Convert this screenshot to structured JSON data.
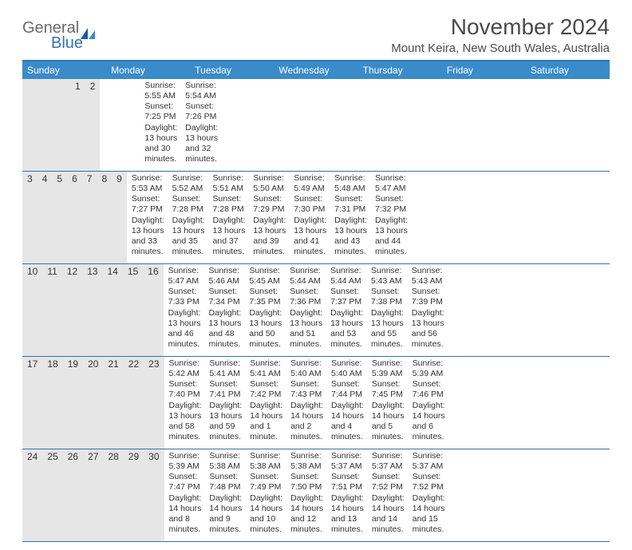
{
  "logo": {
    "general": "General",
    "blue": "Blue"
  },
  "title": "November 2024",
  "location": "Mount Keira, New South Wales, Australia",
  "colors": {
    "header_bg": "#3a8bc9",
    "header_border": "#2e75b6",
    "daynum_bg": "#e6e6e6",
    "week_divider": "#3a6fa8",
    "logo_gray": "#6a6a6a",
    "logo_blue": "#2e75b6"
  },
  "weekdays": [
    "Sunday",
    "Monday",
    "Tuesday",
    "Wednesday",
    "Thursday",
    "Friday",
    "Saturday"
  ],
  "weeks": [
    [
      {
        "num": "",
        "sunrise": "",
        "sunset": "",
        "daylight": ""
      },
      {
        "num": "",
        "sunrise": "",
        "sunset": "",
        "daylight": ""
      },
      {
        "num": "",
        "sunrise": "",
        "sunset": "",
        "daylight": ""
      },
      {
        "num": "",
        "sunrise": "",
        "sunset": "",
        "daylight": ""
      },
      {
        "num": "",
        "sunrise": "",
        "sunset": "",
        "daylight": ""
      },
      {
        "num": "1",
        "sunrise": "Sunrise: 5:55 AM",
        "sunset": "Sunset: 7:25 PM",
        "daylight": "Daylight: 13 hours and 30 minutes."
      },
      {
        "num": "2",
        "sunrise": "Sunrise: 5:54 AM",
        "sunset": "Sunset: 7:26 PM",
        "daylight": "Daylight: 13 hours and 32 minutes."
      }
    ],
    [
      {
        "num": "3",
        "sunrise": "Sunrise: 5:53 AM",
        "sunset": "Sunset: 7:27 PM",
        "daylight": "Daylight: 13 hours and 33 minutes."
      },
      {
        "num": "4",
        "sunrise": "Sunrise: 5:52 AM",
        "sunset": "Sunset: 7:28 PM",
        "daylight": "Daylight: 13 hours and 35 minutes."
      },
      {
        "num": "5",
        "sunrise": "Sunrise: 5:51 AM",
        "sunset": "Sunset: 7:28 PM",
        "daylight": "Daylight: 13 hours and 37 minutes."
      },
      {
        "num": "6",
        "sunrise": "Sunrise: 5:50 AM",
        "sunset": "Sunset: 7:29 PM",
        "daylight": "Daylight: 13 hours and 39 minutes."
      },
      {
        "num": "7",
        "sunrise": "Sunrise: 5:49 AM",
        "sunset": "Sunset: 7:30 PM",
        "daylight": "Daylight: 13 hours and 41 minutes."
      },
      {
        "num": "8",
        "sunrise": "Sunrise: 5:48 AM",
        "sunset": "Sunset: 7:31 PM",
        "daylight": "Daylight: 13 hours and 43 minutes."
      },
      {
        "num": "9",
        "sunrise": "Sunrise: 5:47 AM",
        "sunset": "Sunset: 7:32 PM",
        "daylight": "Daylight: 13 hours and 44 minutes."
      }
    ],
    [
      {
        "num": "10",
        "sunrise": "Sunrise: 5:47 AM",
        "sunset": "Sunset: 7:33 PM",
        "daylight": "Daylight: 13 hours and 46 minutes."
      },
      {
        "num": "11",
        "sunrise": "Sunrise: 5:46 AM",
        "sunset": "Sunset: 7:34 PM",
        "daylight": "Daylight: 13 hours and 48 minutes."
      },
      {
        "num": "12",
        "sunrise": "Sunrise: 5:45 AM",
        "sunset": "Sunset: 7:35 PM",
        "daylight": "Daylight: 13 hours and 50 minutes."
      },
      {
        "num": "13",
        "sunrise": "Sunrise: 5:44 AM",
        "sunset": "Sunset: 7:36 PM",
        "daylight": "Daylight: 13 hours and 51 minutes."
      },
      {
        "num": "14",
        "sunrise": "Sunrise: 5:44 AM",
        "sunset": "Sunset: 7:37 PM",
        "daylight": "Daylight: 13 hours and 53 minutes."
      },
      {
        "num": "15",
        "sunrise": "Sunrise: 5:43 AM",
        "sunset": "Sunset: 7:38 PM",
        "daylight": "Daylight: 13 hours and 55 minutes."
      },
      {
        "num": "16",
        "sunrise": "Sunrise: 5:43 AM",
        "sunset": "Sunset: 7:39 PM",
        "daylight": "Daylight: 13 hours and 56 minutes."
      }
    ],
    [
      {
        "num": "17",
        "sunrise": "Sunrise: 5:42 AM",
        "sunset": "Sunset: 7:40 PM",
        "daylight": "Daylight: 13 hours and 58 minutes."
      },
      {
        "num": "18",
        "sunrise": "Sunrise: 5:41 AM",
        "sunset": "Sunset: 7:41 PM",
        "daylight": "Daylight: 13 hours and 59 minutes."
      },
      {
        "num": "19",
        "sunrise": "Sunrise: 5:41 AM",
        "sunset": "Sunset: 7:42 PM",
        "daylight": "Daylight: 14 hours and 1 minute."
      },
      {
        "num": "20",
        "sunrise": "Sunrise: 5:40 AM",
        "sunset": "Sunset: 7:43 PM",
        "daylight": "Daylight: 14 hours and 2 minutes."
      },
      {
        "num": "21",
        "sunrise": "Sunrise: 5:40 AM",
        "sunset": "Sunset: 7:44 PM",
        "daylight": "Daylight: 14 hours and 4 minutes."
      },
      {
        "num": "22",
        "sunrise": "Sunrise: 5:39 AM",
        "sunset": "Sunset: 7:45 PM",
        "daylight": "Daylight: 14 hours and 5 minutes."
      },
      {
        "num": "23",
        "sunrise": "Sunrise: 5:39 AM",
        "sunset": "Sunset: 7:46 PM",
        "daylight": "Daylight: 14 hours and 6 minutes."
      }
    ],
    [
      {
        "num": "24",
        "sunrise": "Sunrise: 5:39 AM",
        "sunset": "Sunset: 7:47 PM",
        "daylight": "Daylight: 14 hours and 8 minutes."
      },
      {
        "num": "25",
        "sunrise": "Sunrise: 5:38 AM",
        "sunset": "Sunset: 7:48 PM",
        "daylight": "Daylight: 14 hours and 9 minutes."
      },
      {
        "num": "26",
        "sunrise": "Sunrise: 5:38 AM",
        "sunset": "Sunset: 7:49 PM",
        "daylight": "Daylight: 14 hours and 10 minutes."
      },
      {
        "num": "27",
        "sunrise": "Sunrise: 5:38 AM",
        "sunset": "Sunset: 7:50 PM",
        "daylight": "Daylight: 14 hours and 12 minutes."
      },
      {
        "num": "28",
        "sunrise": "Sunrise: 5:37 AM",
        "sunset": "Sunset: 7:51 PM",
        "daylight": "Daylight: 14 hours and 13 minutes."
      },
      {
        "num": "29",
        "sunrise": "Sunrise: 5:37 AM",
        "sunset": "Sunset: 7:52 PM",
        "daylight": "Daylight: 14 hours and 14 minutes."
      },
      {
        "num": "30",
        "sunrise": "Sunrise: 5:37 AM",
        "sunset": "Sunset: 7:52 PM",
        "daylight": "Daylight: 14 hours and 15 minutes."
      }
    ]
  ]
}
